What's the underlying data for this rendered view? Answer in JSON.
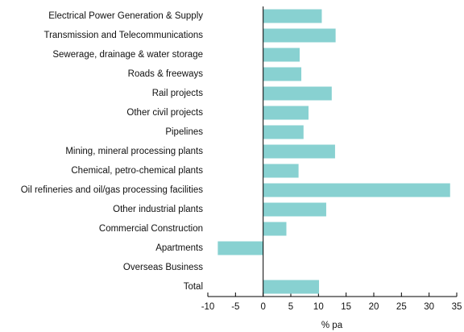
{
  "chart_data": {
    "type": "barh",
    "categories": [
      "Electrical Power Generation & Supply",
      "Transmission and Telecommunications",
      "Sewerage, drainage & water storage",
      "Roads & freeways",
      "Rail projects",
      "Other civil projects",
      "Pipelines",
      "Mining, mineral processing plants",
      "Chemical, petro-chemical plants",
      "Oil refineries and oil/gas processing facilities",
      "Other industrial plants",
      "Commercial Construction",
      "Apartments",
      "Overseas Business",
      "Total"
    ],
    "values": [
      10.6,
      13.1,
      6.6,
      6.9,
      12.4,
      8.2,
      7.3,
      13.0,
      6.4,
      33.8,
      11.4,
      4.2,
      -8.2,
      null,
      10.1
    ],
    "color": "#88d1d1",
    "xlabel": "% pa",
    "xlim": [
      -10,
      35
    ],
    "xticks": [
      -10,
      -5,
      0,
      5,
      10,
      15,
      20,
      25,
      30,
      35
    ]
  }
}
